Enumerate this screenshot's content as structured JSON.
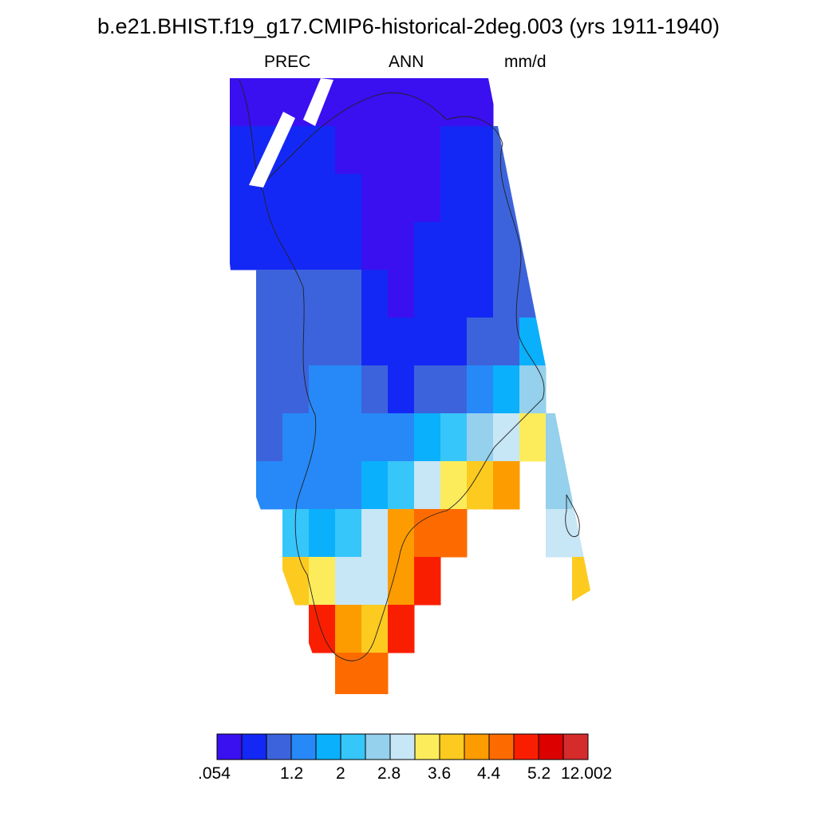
{
  "title": "b.e21.BHIST.f19_g17.CMIP6-historical-2deg.003 (yrs 1911-1940)",
  "subtitles": {
    "left": "PREC",
    "center": "ANN",
    "right": "mm/d"
  },
  "colorbar": {
    "colors": [
      "#3a0ff0",
      "#1428f5",
      "#3d63dc",
      "#2789f7",
      "#0ab0fb",
      "#36c6fa",
      "#95d0ec",
      "#c7e6f6",
      "#fcec5c",
      "#fdca20",
      "#fd9c00",
      "#fd6b00",
      "#fa1e00",
      "#dc0000",
      "#d52b2b"
    ],
    "labels": [
      ".054",
      "1.2",
      "2",
      "2.8",
      "3.6",
      "4.4",
      "5.2",
      "12.002"
    ]
  },
  "map": {
    "variable": "PREC",
    "units": "mm/d",
    "note_levels": "cell color index into colorbar.colors (0 = lowest precip)",
    "cells": [
      [
        0,
        0,
        0,
        0,
        0,
        0,
        0,
        0,
        0,
        0,
        -1,
        -1,
        -1,
        -1
      ],
      [
        1,
        1,
        1,
        1,
        0,
        0,
        0,
        0,
        1,
        1,
        2,
        -1,
        -1,
        -1
      ],
      [
        1,
        1,
        1,
        1,
        1,
        0,
        0,
        0,
        1,
        1,
        2,
        2,
        -1,
        -1
      ],
      [
        1,
        1,
        1,
        1,
        1,
        0,
        0,
        1,
        1,
        1,
        2,
        2,
        -1,
        -1
      ],
      [
        -1,
        2,
        2,
        2,
        2,
        1,
        0,
        1,
        1,
        1,
        2,
        2,
        3,
        -1
      ],
      [
        -1,
        2,
        2,
        2,
        2,
        1,
        1,
        1,
        1,
        2,
        2,
        4,
        4,
        -1
      ],
      [
        -1,
        2,
        2,
        3,
        3,
        2,
        1,
        2,
        2,
        3,
        4,
        6,
        -1,
        -1
      ],
      [
        -1,
        2,
        3,
        3,
        3,
        3,
        3,
        4,
        5,
        6,
        7,
        8,
        6,
        -1
      ],
      [
        -1,
        3,
        3,
        3,
        3,
        4,
        5,
        7,
        8,
        9,
        10,
        -1,
        6,
        -1
      ],
      [
        -1,
        -1,
        5,
        4,
        5,
        7,
        10,
        11,
        11,
        -1,
        -1,
        -1,
        7,
        7
      ],
      [
        -1,
        -1,
        9,
        8,
        7,
        7,
        10,
        12,
        -1,
        -1,
        -1,
        -1,
        -1,
        9
      ],
      [
        -1,
        -1,
        -1,
        12,
        10,
        9,
        12,
        -1,
        -1,
        -1,
        -1,
        -1,
        -1,
        -1
      ],
      [
        -1,
        -1,
        -1,
        -1,
        11,
        11,
        -1,
        -1,
        -1,
        -1,
        -1,
        -1,
        -1,
        -1
      ]
    ]
  }
}
